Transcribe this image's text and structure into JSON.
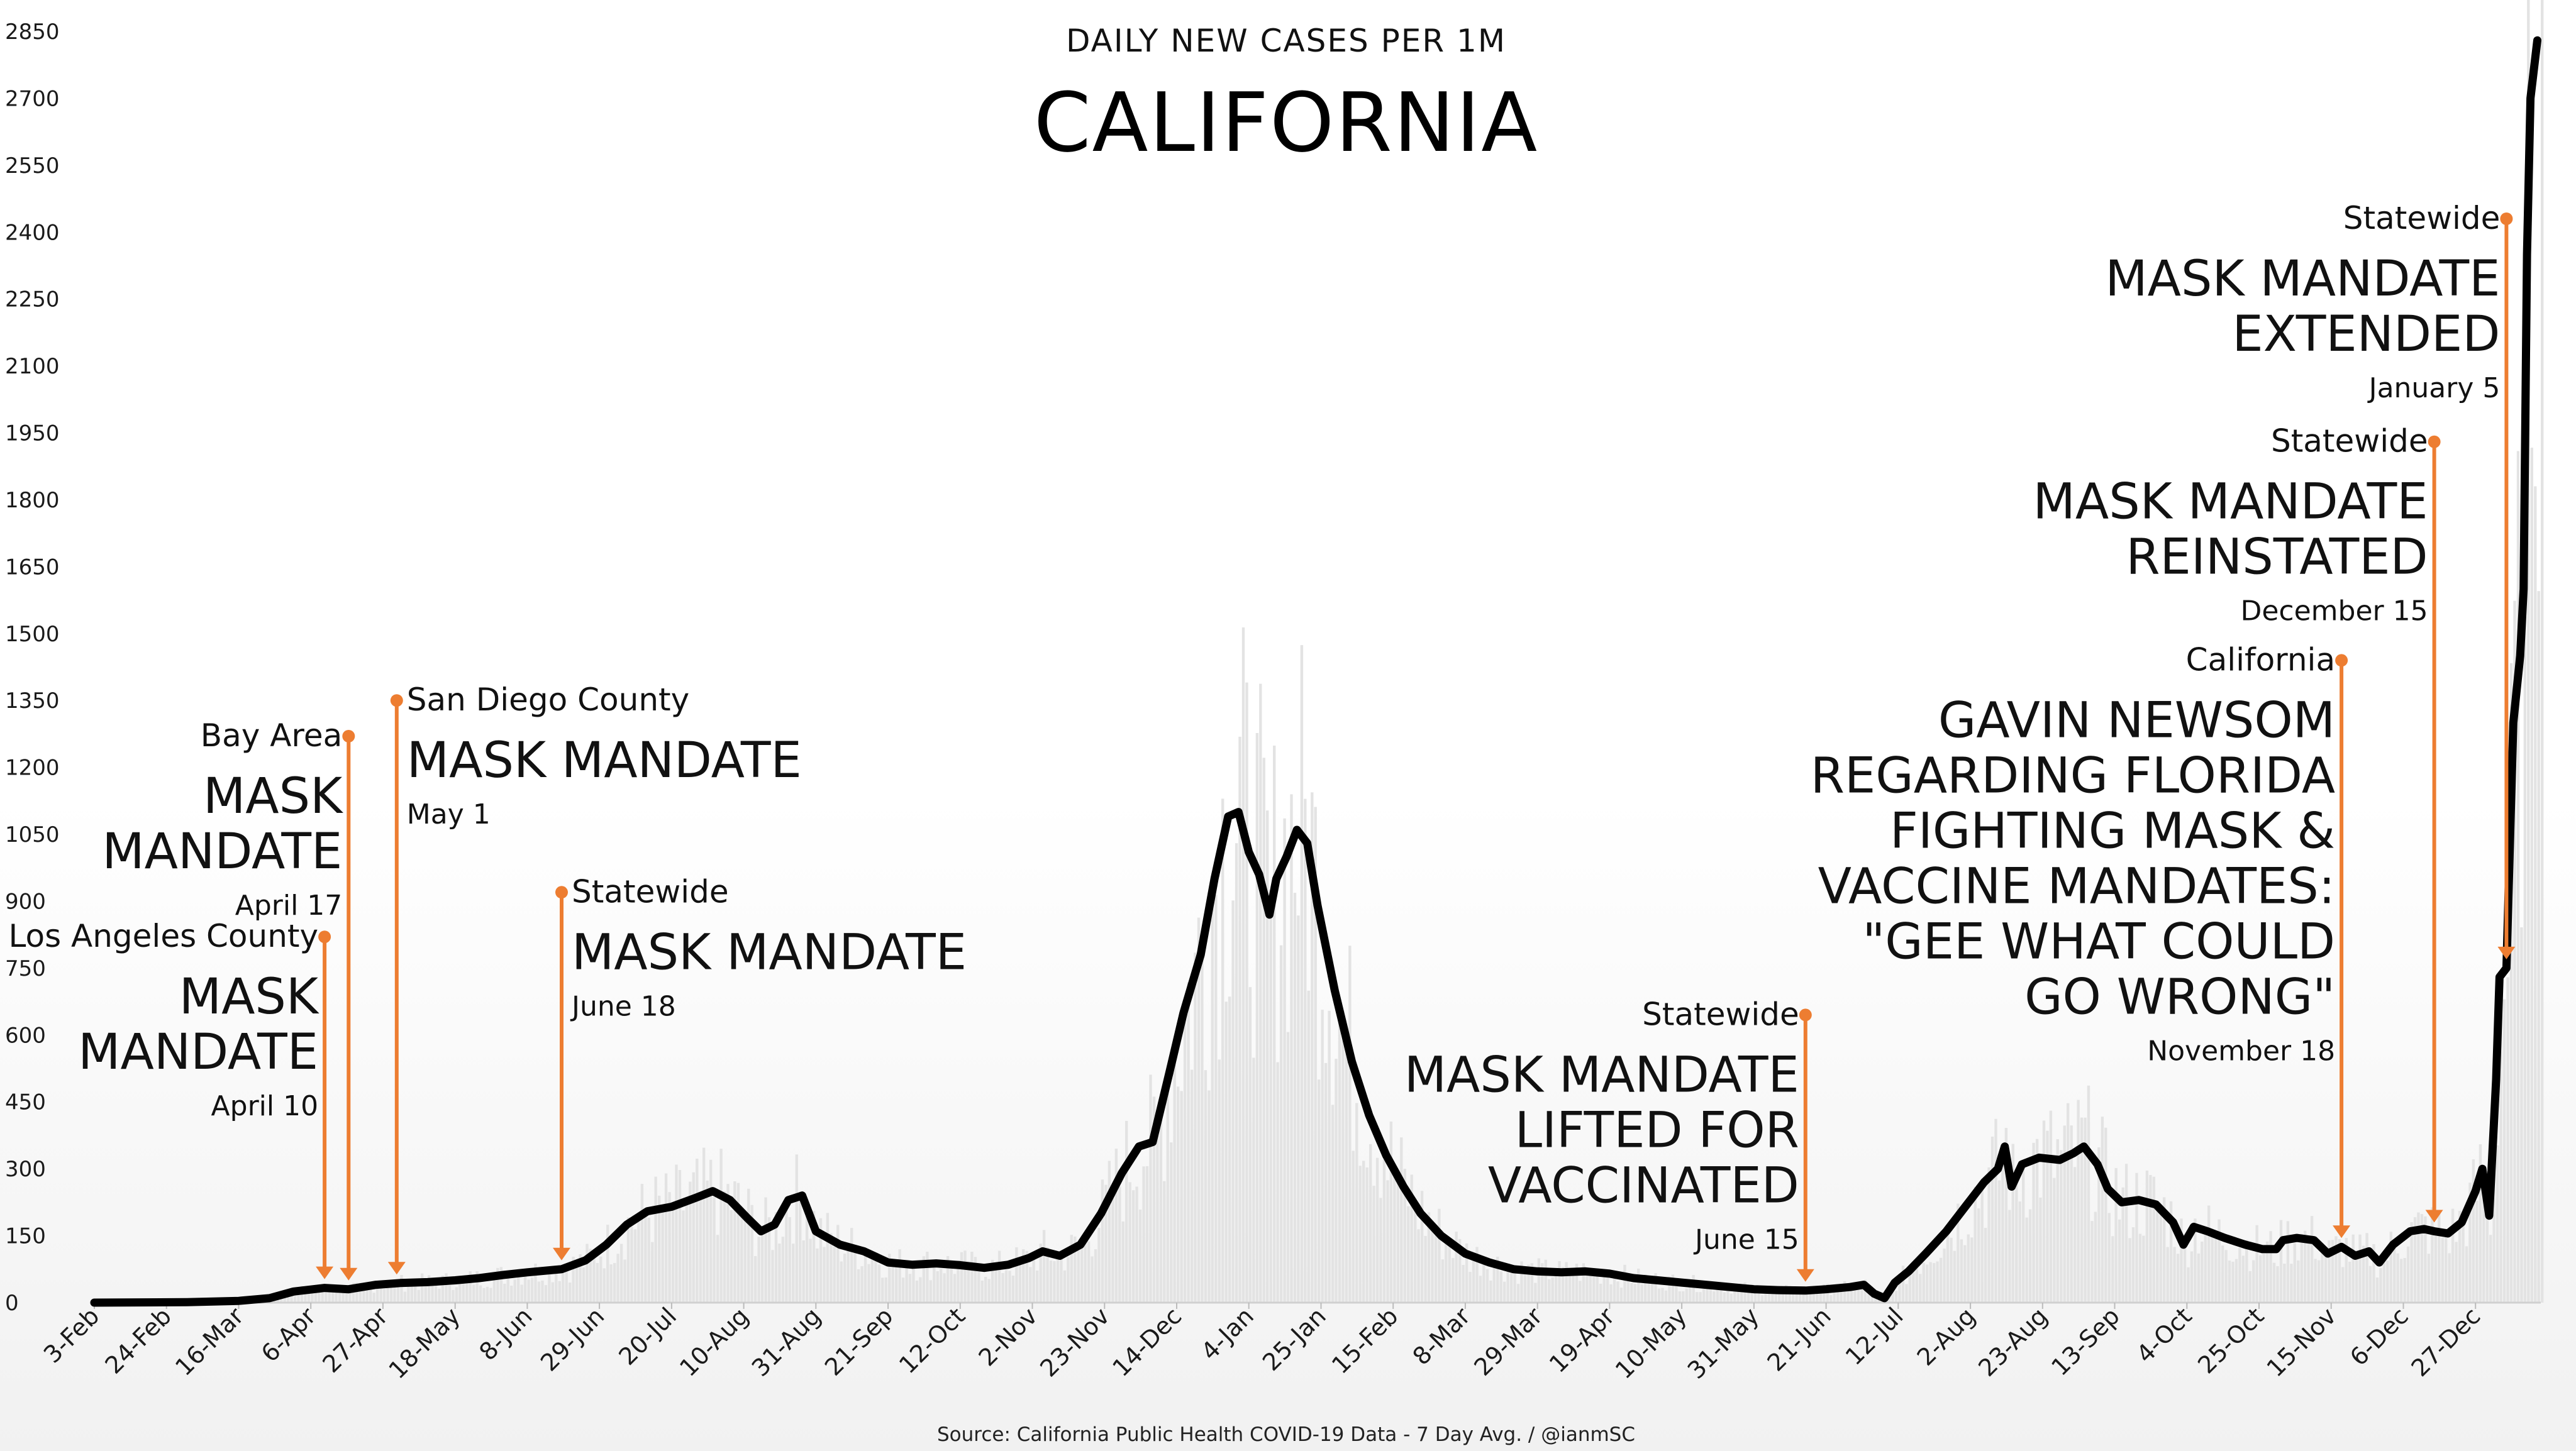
{
  "chart_data": {
    "type": "line",
    "title": "DAILY NEW CASES PER 1M",
    "subtitle": "CALIFORNIA",
    "source": "Source: California Public Health COVID-19 Data - 7 Day Avg. / @ianmSC",
    "ylim": [
      0,
      2850
    ],
    "yticks": [
      0,
      150,
      300,
      450,
      600,
      750,
      900,
      1050,
      1200,
      1350,
      1500,
      1650,
      1800,
      1950,
      2100,
      2250,
      2400,
      2550,
      2700,
      2850
    ],
    "xlim": [
      "2020-02-03",
      "2022-01-15"
    ],
    "xticks": [
      {
        "date": "2020-02-03",
        "label": "3-Feb"
      },
      {
        "date": "2020-02-24",
        "label": "24-Feb"
      },
      {
        "date": "2020-03-16",
        "label": "16-Mar"
      },
      {
        "date": "2020-04-06",
        "label": "6-Apr"
      },
      {
        "date": "2020-04-27",
        "label": "27-Apr"
      },
      {
        "date": "2020-05-18",
        "label": "18-May"
      },
      {
        "date": "2020-06-08",
        "label": "8-Jun"
      },
      {
        "date": "2020-06-29",
        "label": "29-Jun"
      },
      {
        "date": "2020-07-20",
        "label": "20-Jul"
      },
      {
        "date": "2020-08-10",
        "label": "10-Aug"
      },
      {
        "date": "2020-08-31",
        "label": "31-Aug"
      },
      {
        "date": "2020-09-21",
        "label": "21-Sep"
      },
      {
        "date": "2020-10-12",
        "label": "12-Oct"
      },
      {
        "date": "2020-11-02",
        "label": "2-Nov"
      },
      {
        "date": "2020-11-23",
        "label": "23-Nov"
      },
      {
        "date": "2020-12-14",
        "label": "14-Dec"
      },
      {
        "date": "2021-01-04",
        "label": "4-Jan"
      },
      {
        "date": "2021-01-25",
        "label": "25-Jan"
      },
      {
        "date": "2021-02-15",
        "label": "15-Feb"
      },
      {
        "date": "2021-03-08",
        "label": "8-Mar"
      },
      {
        "date": "2021-03-29",
        "label": "29-Mar"
      },
      {
        "date": "2021-04-19",
        "label": "19-Apr"
      },
      {
        "date": "2021-05-10",
        "label": "10-May"
      },
      {
        "date": "2021-05-31",
        "label": "31-May"
      },
      {
        "date": "2021-06-21",
        "label": "21-Jun"
      },
      {
        "date": "2021-07-12",
        "label": "12-Jul"
      },
      {
        "date": "2021-08-02",
        "label": "2-Aug"
      },
      {
        "date": "2021-08-23",
        "label": "23-Aug"
      },
      {
        "date": "2021-09-13",
        "label": "13-Sep"
      },
      {
        "date": "2021-10-04",
        "label": "4-Oct"
      },
      {
        "date": "2021-10-25",
        "label": "25-Oct"
      },
      {
        "date": "2021-11-15",
        "label": "15-Nov"
      },
      {
        "date": "2021-12-06",
        "label": "6-Dec"
      },
      {
        "date": "2021-12-27",
        "label": "27-Dec"
      }
    ],
    "grid": false,
    "legend": "none",
    "colors": {
      "line": "#000000",
      "annotation": "#ed7d31",
      "bars": "#e3e3e3"
    },
    "series": [
      {
        "values": [
          [
            "2020-02-03",
            0
          ],
          [
            "2020-03-01",
            1
          ],
          [
            "2020-03-16",
            4
          ],
          [
            "2020-03-25",
            10
          ],
          [
            "2020-04-01",
            25
          ],
          [
            "2020-04-10",
            33
          ],
          [
            "2020-04-17",
            30
          ],
          [
            "2020-04-25",
            40
          ],
          [
            "2020-05-02",
            44
          ],
          [
            "2020-05-10",
            46
          ],
          [
            "2020-05-18",
            50
          ],
          [
            "2020-05-25",
            55
          ],
          [
            "2020-06-01",
            62
          ],
          [
            "2020-06-08",
            68
          ],
          [
            "2020-06-18",
            75
          ],
          [
            "2020-06-25",
            95
          ],
          [
            "2020-07-01",
            130
          ],
          [
            "2020-07-07",
            175
          ],
          [
            "2020-07-13",
            205
          ],
          [
            "2020-07-20",
            215
          ],
          [
            "2020-07-27",
            235
          ],
          [
            "2020-08-01",
            250
          ],
          [
            "2020-08-06",
            230
          ],
          [
            "2020-08-11",
            190
          ],
          [
            "2020-08-15",
            160
          ],
          [
            "2020-08-19",
            175
          ],
          [
            "2020-08-23",
            230
          ],
          [
            "2020-08-27",
            240
          ],
          [
            "2020-08-31",
            160
          ],
          [
            "2020-09-07",
            130
          ],
          [
            "2020-09-14",
            115
          ],
          [
            "2020-09-21",
            90
          ],
          [
            "2020-09-28",
            85
          ],
          [
            "2020-10-05",
            88
          ],
          [
            "2020-10-12",
            84
          ],
          [
            "2020-10-19",
            78
          ],
          [
            "2020-10-26",
            85
          ],
          [
            "2020-11-01",
            100
          ],
          [
            "2020-11-05",
            115
          ],
          [
            "2020-11-10",
            105
          ],
          [
            "2020-11-16",
            130
          ],
          [
            "2020-11-22",
            200
          ],
          [
            "2020-11-28",
            290
          ],
          [
            "2020-12-03",
            350
          ],
          [
            "2020-12-07",
            360
          ],
          [
            "2020-12-12",
            520
          ],
          [
            "2020-12-16",
            650
          ],
          [
            "2020-12-21",
            780
          ],
          [
            "2020-12-25",
            950
          ],
          [
            "2020-12-29",
            1090
          ],
          [
            "2021-01-01",
            1100
          ],
          [
            "2021-01-04",
            1010
          ],
          [
            "2021-01-07",
            960
          ],
          [
            "2021-01-10",
            870
          ],
          [
            "2021-01-12",
            950
          ],
          [
            "2021-01-15",
            1000
          ],
          [
            "2021-01-18",
            1060
          ],
          [
            "2021-01-21",
            1030
          ],
          [
            "2021-01-24",
            890
          ],
          [
            "2021-01-29",
            700
          ],
          [
            "2021-02-03",
            540
          ],
          [
            "2021-02-08",
            420
          ],
          [
            "2021-02-13",
            330
          ],
          [
            "2021-02-18",
            260
          ],
          [
            "2021-02-23",
            200
          ],
          [
            "2021-03-01",
            150
          ],
          [
            "2021-03-08",
            110
          ],
          [
            "2021-03-15",
            90
          ],
          [
            "2021-03-22",
            75
          ],
          [
            "2021-03-29",
            70
          ],
          [
            "2021-04-05",
            68
          ],
          [
            "2021-04-12",
            70
          ],
          [
            "2021-04-19",
            65
          ],
          [
            "2021-04-26",
            55
          ],
          [
            "2021-05-03",
            50
          ],
          [
            "2021-05-10",
            45
          ],
          [
            "2021-05-17",
            40
          ],
          [
            "2021-05-24",
            35
          ],
          [
            "2021-05-31",
            30
          ],
          [
            "2021-06-07",
            28
          ],
          [
            "2021-06-15",
            27
          ],
          [
            "2021-06-21",
            30
          ],
          [
            "2021-06-28",
            35
          ],
          [
            "2021-07-02",
            40
          ],
          [
            "2021-07-05",
            20
          ],
          [
            "2021-07-08",
            10
          ],
          [
            "2021-07-11",
            45
          ],
          [
            "2021-07-15",
            70
          ],
          [
            "2021-07-20",
            110
          ],
          [
            "2021-07-26",
            160
          ],
          [
            "2021-08-01",
            220
          ],
          [
            "2021-08-06",
            270
          ],
          [
            "2021-08-10",
            300
          ],
          [
            "2021-08-12",
            350
          ],
          [
            "2021-08-14",
            260
          ],
          [
            "2021-08-17",
            310
          ],
          [
            "2021-08-22",
            325
          ],
          [
            "2021-08-28",
            320
          ],
          [
            "2021-09-01",
            335
          ],
          [
            "2021-09-04",
            350
          ],
          [
            "2021-09-08",
            310
          ],
          [
            "2021-09-11",
            255
          ],
          [
            "2021-09-15",
            225
          ],
          [
            "2021-09-20",
            230
          ],
          [
            "2021-09-25",
            220
          ],
          [
            "2021-09-30",
            180
          ],
          [
            "2021-10-03",
            130
          ],
          [
            "2021-10-06",
            170
          ],
          [
            "2021-10-10",
            160
          ],
          [
            "2021-10-15",
            145
          ],
          [
            "2021-10-21",
            130
          ],
          [
            "2021-10-26",
            120
          ],
          [
            "2021-10-30",
            120
          ],
          [
            "2021-11-01",
            140
          ],
          [
            "2021-11-05",
            145
          ],
          [
            "2021-11-10",
            140
          ],
          [
            "2021-11-14",
            110
          ],
          [
            "2021-11-18",
            125
          ],
          [
            "2021-11-22",
            105
          ],
          [
            "2021-11-26",
            115
          ],
          [
            "2021-11-29",
            90
          ],
          [
            "2021-12-03",
            130
          ],
          [
            "2021-12-08",
            160
          ],
          [
            "2021-12-12",
            165
          ],
          [
            "2021-12-15",
            160
          ],
          [
            "2021-12-19",
            155
          ],
          [
            "2021-12-23",
            180
          ],
          [
            "2021-12-27",
            250
          ],
          [
            "2021-12-29",
            300
          ],
          [
            "2021-12-31",
            195
          ],
          [
            "2022-01-02",
            500
          ],
          [
            "2022-01-03",
            730
          ],
          [
            "2022-01-05",
            750
          ],
          [
            "2022-01-07",
            1300
          ],
          [
            "2022-01-09",
            1450
          ],
          [
            "2022-01-10",
            1600
          ],
          [
            "2022-01-11",
            2350
          ],
          [
            "2022-01-12",
            2700
          ],
          [
            "2022-01-14",
            2830
          ]
        ]
      }
    ],
    "annotations": [
      {
        "date": "2020-04-10",
        "value": 820,
        "prefix": "Los Angeles County",
        "lines": [
          "MASK",
          "MANDATE"
        ],
        "date_label": "April 10"
      },
      {
        "date": "2020-04-17",
        "value": 1270,
        "prefix": "Bay Area",
        "lines": [
          "MASK",
          "MANDATE"
        ],
        "date_label": "April 17"
      },
      {
        "date": "2020-05-01",
        "value": 1350,
        "prefix": "San Diego County",
        "lines": [
          "MASK MANDATE"
        ],
        "date_label": "May 1"
      },
      {
        "date": "2020-06-18",
        "value": 920,
        "prefix": "Statewide",
        "lines": [
          "MASK MANDATE"
        ],
        "date_label": "June 18"
      },
      {
        "date": "2021-06-15",
        "value": 645,
        "prefix": "Statewide",
        "lines": [
          "MASK MANDATE",
          "LIFTED FOR",
          "VACCINATED"
        ],
        "date_label": "June 15"
      },
      {
        "date": "2021-11-18",
        "value": 1440,
        "prefix": "California",
        "lines": [
          "GAVIN NEWSOM",
          "REGARDING FLORIDA",
          "FIGHTING MASK &",
          "VACCINE MANDATES:",
          "\"GEE WHAT COULD",
          "GO WRONG\""
        ],
        "date_label": "November 18"
      },
      {
        "date": "2021-12-15",
        "value": 1930,
        "prefix": "Statewide",
        "lines": [
          "MASK MANDATE",
          "REINSTATED"
        ],
        "date_label": "December 15"
      },
      {
        "date": "2022-01-05",
        "value": 2430,
        "prefix": "Statewide",
        "lines": [
          "MASK MANDATE",
          "EXTENDED"
        ],
        "date_label": "January 5"
      }
    ]
  }
}
